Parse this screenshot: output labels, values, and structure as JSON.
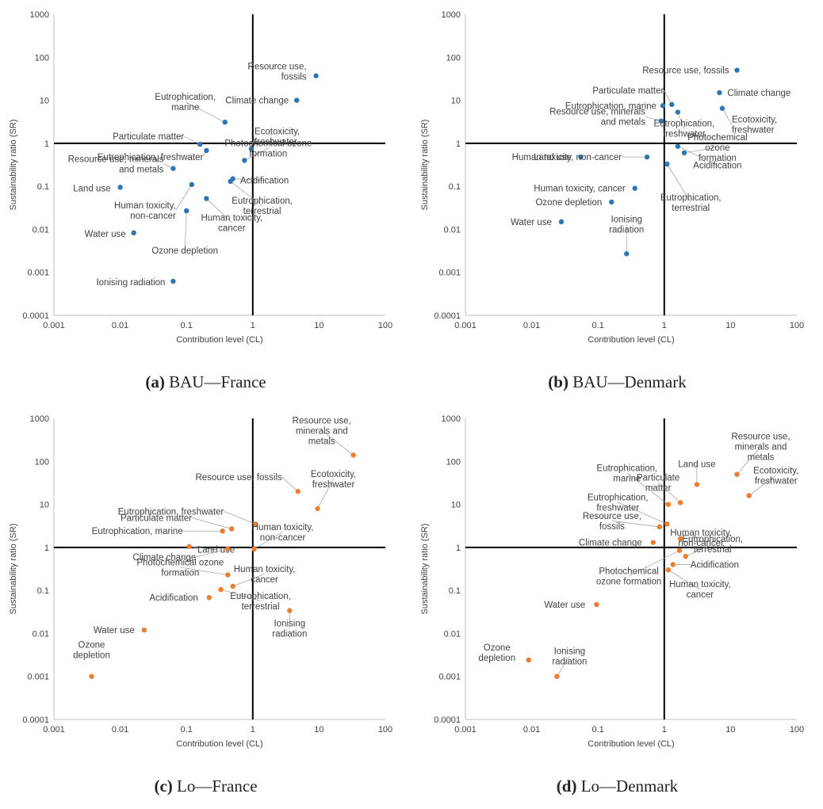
{
  "chart_data": [
    {
      "type": "scatter",
      "caption_letter": "(a)",
      "caption_text": " BAU—France",
      "xlabel": "Contribution level (CL)",
      "ylabel": "Sustainability ratio (SR)",
      "xscale": "log",
      "yscale": "log",
      "xlim": [
        0.001,
        100
      ],
      "ylim": [
        0.0001,
        1000
      ],
      "x_ticks": [
        "0.001",
        "0.01",
        "0.1",
        "1",
        "10",
        "100"
      ],
      "y_ticks": [
        "0.0001",
        "0.001",
        "0.01",
        "0.1",
        "1",
        "10",
        "100",
        "1000"
      ],
      "color": "#2e75b6",
      "grid": false,
      "points": [
        {
          "label": "Resource use, fossils",
          "x": 9,
          "y": 37
        },
        {
          "label": "Climate change",
          "x": 4.6,
          "y": 10
        },
        {
          "label": "Eutrophication, marine",
          "x": 0.38,
          "y": 3.1
        },
        {
          "label": "Ecotoxicity, freshwater",
          "x": 0.95,
          "y": 0.75
        },
        {
          "label": "Particulate matter",
          "x": 0.16,
          "y": 0.95
        },
        {
          "label": "Eutrophication, freshwater",
          "x": 0.2,
          "y": 0.68
        },
        {
          "label": "Photochemical ozone formation",
          "x": 0.75,
          "y": 0.4
        },
        {
          "label": "Resource use, minerals and metals",
          "x": 0.063,
          "y": 0.26
        },
        {
          "label": "Land use",
          "x": 0.01,
          "y": 0.095
        },
        {
          "label": "Acidification",
          "x": 0.5,
          "y": 0.15
        },
        {
          "label": "Human toxicity, non-cancer",
          "x": 0.12,
          "y": 0.11
        },
        {
          "label": "Eutrophication, terrestrial",
          "x": 0.46,
          "y": 0.13
        },
        {
          "label": "Human toxicity, cancer",
          "x": 0.2,
          "y": 0.052
        },
        {
          "label": "Ozone depletion",
          "x": 0.1,
          "y": 0.027
        },
        {
          "label": "Water use",
          "x": 0.016,
          "y": 0.0083
        },
        {
          "label": "Ionising radiation",
          "x": 0.063,
          "y": 0.00062
        }
      ]
    },
    {
      "type": "scatter",
      "caption_letter": "(b)",
      "caption_text": " BAU—Denmark",
      "xlabel": "Contribution level (CL)",
      "ylabel": "Sustainability ratio (SR)",
      "xscale": "log",
      "yscale": "log",
      "xlim": [
        0.001,
        100
      ],
      "ylim": [
        0.0001,
        1000
      ],
      "x_ticks": [
        "0.001",
        "0.01",
        "0.1",
        "1",
        "10",
        "100"
      ],
      "y_ticks": [
        "0.0001",
        "0.001",
        "0.01",
        "0.1",
        "1",
        "10",
        "100",
        "1000"
      ],
      "color": "#2e75b6",
      "grid": false,
      "points": [
        {
          "label": "Resource use, fossils",
          "x": 12.5,
          "y": 50
        },
        {
          "label": "Climate change",
          "x": 6.8,
          "y": 15
        },
        {
          "label": "Particulate matter",
          "x": 1.3,
          "y": 8
        },
        {
          "label": "Eutrophication, marine",
          "x": 0.95,
          "y": 7.5
        },
        {
          "label": "Ecotoxicity, freshwater",
          "x": 7.5,
          "y": 6.5
        },
        {
          "label": "Resource use, minerals and metals",
          "x": 0.9,
          "y": 3.3
        },
        {
          "label": "Eutrophication, freshwater",
          "x": 1.6,
          "y": 5.3
        },
        {
          "label": "Photochemical ozone formation",
          "x": 2,
          "y": 0.6
        },
        {
          "label": "Land use",
          "x": 0.055,
          "y": 0.48
        },
        {
          "label": "Human toxicity, non-cancer",
          "x": 0.55,
          "y": 0.48
        },
        {
          "label": "Acidification",
          "x": 1.6,
          "y": 0.85
        },
        {
          "label": "Eutrophication, terrestrial",
          "x": 1.1,
          "y": 0.33
        },
        {
          "label": "Human toxicity, cancer",
          "x": 0.36,
          "y": 0.09
        },
        {
          "label": "Ozone depletion",
          "x": 0.16,
          "y": 0.043
        },
        {
          "label": "Water use",
          "x": 0.028,
          "y": 0.015
        },
        {
          "label": "Ionising radiation",
          "x": 0.27,
          "y": 0.0027
        }
      ]
    },
    {
      "type": "scatter",
      "caption_letter": "(c)",
      "caption_text": " Lo—France",
      "xlabel": "Contribution level (CL)",
      "ylabel": "Sustainability ratio (SR)",
      "xscale": "log",
      "yscale": "log",
      "xlim": [
        0.001,
        100
      ],
      "ylim": [
        0.0001,
        1000
      ],
      "x_ticks": [
        "0.001",
        "0.01",
        "0.1",
        "1",
        "10",
        "100"
      ],
      "y_ticks": [
        "0.0001",
        "0.001",
        "0.01",
        "0.1",
        "1",
        "10",
        "100",
        "1000"
      ],
      "color": "#ed7d31",
      "grid": false,
      "points": [
        {
          "label": "Resource use, minerals and metals",
          "x": 33,
          "y": 140
        },
        {
          "label": "Resource use, fossils",
          "x": 4.8,
          "y": 20
        },
        {
          "label": "Ecotoxicity, freshwater",
          "x": 9.5,
          "y": 8
        },
        {
          "label": "Eutrophication, freshwater",
          "x": 1.1,
          "y": 3.5
        },
        {
          "label": "Particulate matter",
          "x": 0.48,
          "y": 2.7
        },
        {
          "label": "Eutrophication, marine",
          "x": 0.35,
          "y": 2.4
        },
        {
          "label": "Land use",
          "x": 0.11,
          "y": 1.05
        },
        {
          "label": "Climate change",
          "x": 0.42,
          "y": 0.92
        },
        {
          "label": "Human toxicity, non-cancer",
          "x": 1.05,
          "y": 0.92
        },
        {
          "label": "Photochemical ozone formation",
          "x": 0.42,
          "y": 0.23
        },
        {
          "label": "Human toxicity, cancer",
          "x": 0.5,
          "y": 0.125
        },
        {
          "label": "Eutrophication, terrestrial",
          "x": 0.33,
          "y": 0.105
        },
        {
          "label": "Acidification",
          "x": 0.22,
          "y": 0.068
        },
        {
          "label": "Ionising radiation",
          "x": 3.6,
          "y": 0.034
        },
        {
          "label": "Water use",
          "x": 0.023,
          "y": 0.012
        },
        {
          "label": "Ozone depletion",
          "x": 0.0037,
          "y": 0.001
        }
      ]
    },
    {
      "type": "scatter",
      "caption_letter": "(d)",
      "caption_text": " Lo—Denmark",
      "xlabel": "Contribution level (CL)",
      "ylabel": "Sustainability ratio (SR)",
      "xscale": "log",
      "yscale": "log",
      "xlim": [
        0.001,
        100
      ],
      "ylim": [
        0.0001,
        1000
      ],
      "x_ticks": [
        "0.001",
        "0.01",
        "0.1",
        "1",
        "10",
        "100"
      ],
      "y_ticks": [
        "0.0001",
        "0.001",
        "0.01",
        "0.1",
        "1",
        "10",
        "100",
        "1000"
      ],
      "color": "#ed7d31",
      "grid": false,
      "points": [
        {
          "label": "Resource use, minerals and metals",
          "x": 12.5,
          "y": 50
        },
        {
          "label": "Land use",
          "x": 3.1,
          "y": 29
        },
        {
          "label": "Ecotoxicity, freshwater",
          "x": 19,
          "y": 16
        },
        {
          "label": "Particulate matter",
          "x": 1.75,
          "y": 11
        },
        {
          "label": "Eutrophication, marine",
          "x": 1.15,
          "y": 10
        },
        {
          "label": "Eutrophication, freshwater",
          "x": 1.1,
          "y": 3.5
        },
        {
          "label": "Resource use, fossils",
          "x": 0.85,
          "y": 3
        },
        {
          "label": "Human toxicity, non-cancer",
          "x": 1.75,
          "y": 1.6
        },
        {
          "label": "Climate change",
          "x": 0.68,
          "y": 1.3
        },
        {
          "label": "Photochemical ozone formation",
          "x": 1.7,
          "y": 0.85
        },
        {
          "label": "Eutrophication, terrestrial",
          "x": 2.1,
          "y": 0.62
        },
        {
          "label": "Acidification",
          "x": 1.35,
          "y": 0.4
        },
        {
          "label": "Human toxicity, cancer",
          "x": 1.15,
          "y": 0.3
        },
        {
          "label": "Water use",
          "x": 0.095,
          "y": 0.047
        },
        {
          "label": "Ozone depletion",
          "x": 0.009,
          "y": 0.0024
        },
        {
          "label": "Ionising radiation",
          "x": 0.024,
          "y": 0.001
        }
      ]
    }
  ],
  "annotations": [
    [
      {
        "lines": [
          "Resource use,",
          "fossils"
        ],
        "anchor": "end"
      },
      {
        "lines": [
          "Climate change"
        ],
        "anchor": "end"
      },
      {
        "lines": [
          "Eutrophication,",
          "marine"
        ],
        "anchor": "middle"
      },
      {
        "lines": [
          "Ecotoxicity,",
          "freshwater"
        ],
        "anchor": "start"
      },
      {
        "lines": [
          "Particulate matter"
        ],
        "anchor": "end"
      },
      {
        "lines": [
          "Eutrophication, freshwater"
        ],
        "anchor": "end"
      },
      {
        "lines": [
          "Photochemical ozone",
          "formation"
        ],
        "anchor": "middle"
      },
      {
        "lines": [
          "Resource use, minerals",
          "and metals"
        ],
        "anchor": "end"
      },
      {
        "lines": [
          "Land use"
        ],
        "anchor": "end"
      },
      {
        "lines": [
          "Acidification"
        ],
        "anchor": "middle"
      },
      {
        "lines": [
          "Human toxicity,",
          "non-cancer"
        ],
        "anchor": "end"
      },
      {
        "lines": [
          "Eutrophication,",
          "terrestrial"
        ],
        "anchor": "middle"
      },
      {
        "lines": [
          "Human toxicity,",
          "cancer"
        ],
        "anchor": "middle"
      },
      {
        "lines": [
          "Ozone depletion"
        ],
        "anchor": "middle"
      },
      {
        "lines": [
          "Water use"
        ],
        "anchor": "end"
      },
      {
        "lines": [
          "Ionising radiation"
        ],
        "anchor": "end"
      }
    ],
    [
      {
        "lines": [
          "Resource use, fossils"
        ],
        "anchor": "end"
      },
      {
        "lines": [
          "Climate change"
        ],
        "anchor": "start"
      },
      {
        "lines": [
          "Particulate matter"
        ],
        "anchor": "end"
      },
      {
        "lines": [
          "Eutrophication, marine"
        ],
        "anchor": "end"
      },
      {
        "lines": [
          "Ecotoxicity,",
          "freshwater"
        ],
        "anchor": "start"
      },
      {
        "lines": [
          "Resource use, minerals",
          "and metals"
        ],
        "anchor": "end"
      },
      {
        "lines": [
          "Eutrophication,",
          "freshwater"
        ],
        "anchor": "middle"
      },
      {
        "lines": [
          "Photochemical",
          "ozone",
          "formation"
        ],
        "anchor": "middle"
      },
      {
        "lines": [
          "Land use"
        ],
        "anchor": "end"
      },
      {
        "lines": [
          "Human toxicity, non-cancer"
        ],
        "anchor": "end"
      },
      {
        "lines": [
          "Acidification"
        ],
        "anchor": "middle"
      },
      {
        "lines": [
          "Eutrophication,",
          "terrestrial"
        ],
        "anchor": "middle"
      },
      {
        "lines": [
          "Human toxicity, cancer"
        ],
        "anchor": "end"
      },
      {
        "lines": [
          "Ozone depletion"
        ],
        "anchor": "end"
      },
      {
        "lines": [
          "Water use"
        ],
        "anchor": "end"
      },
      {
        "lines": [
          "Ionising",
          "radiation"
        ],
        "anchor": "middle"
      }
    ],
    [
      {
        "lines": [
          "Resource use,",
          "minerals and",
          "metals"
        ],
        "anchor": "middle"
      },
      {
        "lines": [
          "Resource use, fossils"
        ],
        "anchor": "end"
      },
      {
        "lines": [
          "Ecotoxicity,",
          "freshwater"
        ],
        "anchor": "middle"
      },
      {
        "lines": [
          "Eutrophication, freshwater"
        ],
        "anchor": "end"
      },
      {
        "lines": [
          "Particulate matter"
        ],
        "anchor": "end"
      },
      {
        "lines": [
          "Eutrophication, marine"
        ],
        "anchor": "end"
      },
      {
        "lines": [
          "Land use"
        ],
        "anchor": "middle"
      },
      {
        "lines": [
          "Climate change"
        ],
        "anchor": "end"
      },
      {
        "lines": [
          "Human toxicity,",
          "non-cancer"
        ],
        "anchor": "middle"
      },
      {
        "lines": [
          "Photochemical ozone",
          "formation"
        ],
        "anchor": "middle"
      },
      {
        "lines": [
          "Human toxicity,",
          "cancer"
        ],
        "anchor": "middle"
      },
      {
        "lines": [
          "Eutrophication,",
          "terrestrial"
        ],
        "anchor": "middle"
      },
      {
        "lines": [
          "Acidification"
        ],
        "anchor": "end"
      },
      {
        "lines": [
          "Ionising",
          "radiation"
        ],
        "anchor": "middle"
      },
      {
        "lines": [
          "Water use"
        ],
        "anchor": "end"
      },
      {
        "lines": [
          "Ozone",
          "depletion"
        ],
        "anchor": "middle"
      }
    ],
    [
      {
        "lines": [
          "Resource use,",
          "minerals and",
          "metals"
        ],
        "anchor": "middle"
      },
      {
        "lines": [
          "Land use"
        ],
        "anchor": "middle"
      },
      {
        "lines": [
          "Ecotoxicity,",
          "freshwater"
        ],
        "anchor": "middle"
      },
      {
        "lines": [
          "Particulate",
          "matter"
        ],
        "anchor": "middle"
      },
      {
        "lines": [
          "Eutrophication,",
          "marine"
        ],
        "anchor": "middle"
      },
      {
        "lines": [
          "Eutrophication,",
          "freshwater"
        ],
        "anchor": "middle"
      },
      {
        "lines": [
          "Resource use,",
          "fossils"
        ],
        "anchor": "middle"
      },
      {
        "lines": [
          "Human toxicity,",
          "non-cancer"
        ],
        "anchor": "middle"
      },
      {
        "lines": [
          "Climate change"
        ],
        "anchor": "end"
      },
      {
        "lines": [
          "Photochemical",
          "ozone formation"
        ],
        "anchor": "middle"
      },
      {
        "lines": [
          "Eutrophication,",
          "terrestrial"
        ],
        "anchor": "middle"
      },
      {
        "lines": [
          "Acidification"
        ],
        "anchor": "start"
      },
      {
        "lines": [
          "Human toxicity,",
          "cancer"
        ],
        "anchor": "middle"
      },
      {
        "lines": [
          "Water use"
        ],
        "anchor": "end"
      },
      {
        "lines": [
          "Ozone",
          "depletion"
        ],
        "anchor": "middle"
      },
      {
        "lines": [
          "Ionising",
          "radiation"
        ],
        "anchor": "middle"
      }
    ]
  ]
}
